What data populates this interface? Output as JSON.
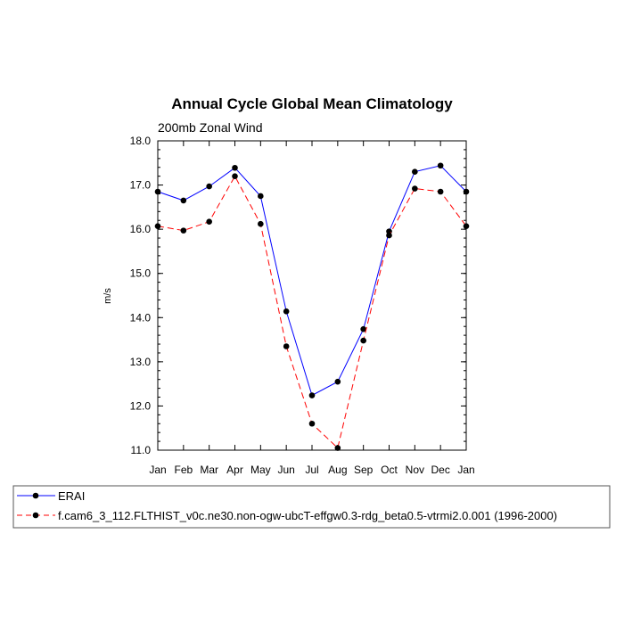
{
  "chart_data": {
    "type": "line",
    "title": "Annual Cycle Global Mean Climatology",
    "subtitle": "200mb Zonal Wind",
    "xlabel": "",
    "ylabel": "m/s",
    "categories": [
      "Jan",
      "Feb",
      "Mar",
      "Apr",
      "May",
      "Jun",
      "Jul",
      "Aug",
      "Sep",
      "Oct",
      "Nov",
      "Dec",
      "Jan"
    ],
    "ylim": [
      11.0,
      18.0
    ],
    "y_ticks": [
      "11.0",
      "12.0",
      "13.0",
      "14.0",
      "15.0",
      "16.0",
      "17.0",
      "18.0"
    ],
    "grid": false,
    "legend_position": "bottom",
    "series": [
      {
        "name": "ERAI",
        "color": "#0000ff",
        "line_style": "solid",
        "marker": "filled-circle",
        "values": [
          16.85,
          16.65,
          16.97,
          17.39,
          16.75,
          14.14,
          12.24,
          12.55,
          13.74,
          15.95,
          17.3,
          17.44,
          16.85
        ]
      },
      {
        "name": "f.cam6_3_112.FLTHIST_v0c.ne30.non-ogw-ubcT-effgw0.3-rdg_beta0.5-vtrmi2.0.001 (1996-2000)",
        "color": "#ff0000",
        "line_style": "dashed",
        "marker": "filled-circle",
        "values": [
          16.07,
          15.97,
          16.17,
          17.2,
          16.12,
          13.35,
          11.6,
          11.05,
          13.48,
          15.86,
          16.92,
          16.85,
          16.07
        ]
      }
    ]
  }
}
